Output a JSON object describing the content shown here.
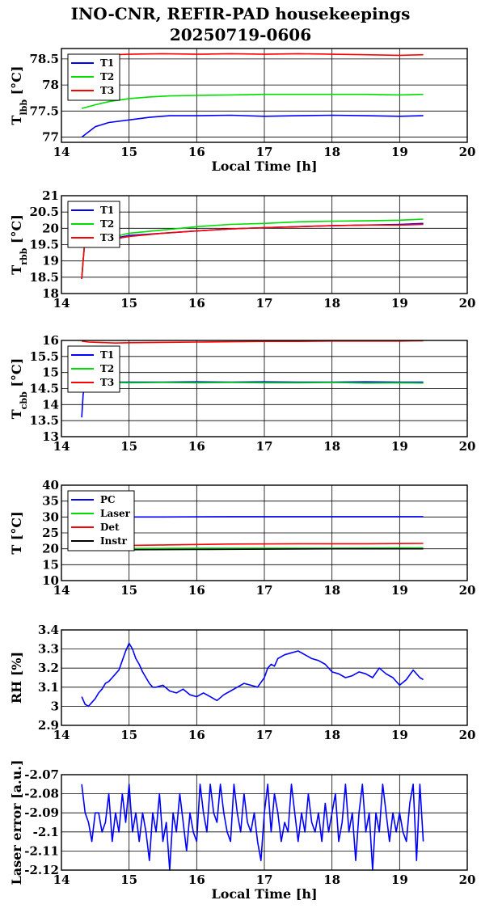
{
  "title": {
    "line1": "INO-CNR, REFIR-PAD housekeepings",
    "line2": "20250719-0606"
  },
  "colors": {
    "blue": "#0000ff",
    "green": "#00dd00",
    "red": "#ff0000",
    "black": "#000000"
  },
  "chart_data": [
    {
      "type": "line",
      "xlabel": "Local Time [h]",
      "ylabel": "T",
      "ylabel_sub": "lbb",
      "ylabel_unit": " [°C]",
      "xlim": [
        14,
        20
      ],
      "ylim": [
        76.9,
        78.7
      ],
      "xticks": [
        14,
        15,
        16,
        17,
        18,
        19,
        20
      ],
      "yticks": [
        77,
        77.5,
        78,
        78.5
      ],
      "ytick_labels": [
        "77",
        "77.5",
        "78",
        "78.5"
      ],
      "legend": "top-left",
      "series": [
        {
          "name": "T1",
          "color": "blue",
          "x": [
            14.3,
            14.4,
            14.5,
            14.7,
            15.0,
            15.3,
            15.6,
            16.0,
            16.5,
            17.0,
            17.5,
            18.0,
            18.5,
            19.0,
            19.35
          ],
          "y": [
            77.0,
            77.1,
            77.2,
            77.28,
            77.33,
            77.38,
            77.41,
            77.41,
            77.42,
            77.4,
            77.41,
            77.42,
            77.41,
            77.4,
            77.41
          ]
        },
        {
          "name": "T2",
          "color": "green",
          "x": [
            14.3,
            14.5,
            14.7,
            15.0,
            15.3,
            15.6,
            16.0,
            16.5,
            17.0,
            17.5,
            18.0,
            18.5,
            19.0,
            19.35
          ],
          "y": [
            77.55,
            77.62,
            77.68,
            77.74,
            77.77,
            77.79,
            77.8,
            77.81,
            77.82,
            77.82,
            77.82,
            77.82,
            77.81,
            77.82
          ]
        },
        {
          "name": "T3",
          "color": "red",
          "x": [
            14.75,
            15.0,
            15.5,
            16.0,
            16.5,
            17.0,
            17.5,
            18.0,
            18.5,
            19.0,
            19.35
          ],
          "y": [
            78.58,
            78.59,
            78.6,
            78.59,
            78.6,
            78.59,
            78.6,
            78.59,
            78.58,
            78.57,
            78.58
          ]
        }
      ]
    },
    {
      "type": "line",
      "xlabel": "",
      "ylabel": "T",
      "ylabel_sub": "rbb",
      "ylabel_unit": " [°C]",
      "xlim": [
        14,
        20
      ],
      "ylim": [
        18,
        21
      ],
      "xticks": [
        14,
        15,
        16,
        17,
        18,
        19,
        20
      ],
      "yticks": [
        18,
        18.5,
        19,
        19.5,
        20,
        20.5,
        21
      ],
      "ytick_labels": [
        "18",
        "18.5",
        "19",
        "19.5",
        "20",
        "20.5",
        "21"
      ],
      "legend": "top-left",
      "series": [
        {
          "name": "T1",
          "color": "blue",
          "x": [
            14.3,
            14.32,
            14.34,
            14.4,
            14.6,
            14.8,
            15.0,
            15.5,
            16.0,
            16.5,
            17.0,
            17.5,
            18.0,
            18.5,
            19.0,
            19.35
          ],
          "y": [
            18.45,
            19.0,
            19.45,
            19.55,
            19.6,
            19.7,
            19.78,
            19.85,
            19.92,
            19.98,
            20.02,
            20.05,
            20.08,
            20.1,
            20.12,
            20.15
          ]
        },
        {
          "name": "T2",
          "color": "green",
          "x": [
            14.3,
            14.32,
            14.34,
            14.4,
            14.6,
            14.8,
            15.0,
            15.5,
            16.0,
            16.5,
            17.0,
            17.5,
            18.0,
            18.5,
            19.0,
            19.35
          ],
          "y": [
            18.45,
            19.0,
            19.45,
            19.55,
            19.65,
            19.75,
            19.85,
            19.95,
            20.05,
            20.12,
            20.15,
            20.2,
            20.22,
            20.23,
            20.25,
            20.28
          ]
        },
        {
          "name": "T3",
          "color": "red",
          "x": [
            14.3,
            14.32,
            14.34,
            14.4,
            14.6,
            14.8,
            15.0,
            15.5,
            16.0,
            16.5,
            17.0,
            17.5,
            18.0,
            18.5,
            19.0,
            19.35
          ],
          "y": [
            18.45,
            19.0,
            19.45,
            19.55,
            19.6,
            19.68,
            19.75,
            19.85,
            19.92,
            19.98,
            20.02,
            20.05,
            20.08,
            20.1,
            20.1,
            20.12
          ]
        }
      ]
    },
    {
      "type": "line",
      "xlabel": "",
      "ylabel": "T",
      "ylabel_sub": "cbb",
      "ylabel_unit": " [°C]",
      "xlim": [
        14,
        20
      ],
      "ylim": [
        13,
        16
      ],
      "xticks": [
        14,
        15,
        16,
        17,
        18,
        19,
        20
      ],
      "yticks": [
        13,
        13.5,
        14,
        14.5,
        15,
        15.5,
        16
      ],
      "ytick_labels": [
        "13",
        "13.5",
        "14",
        "14.5",
        "15",
        "15.5",
        "16"
      ],
      "legend": "top-left",
      "series": [
        {
          "name": "T1",
          "color": "blue",
          "x": [
            14.3,
            14.32,
            14.34,
            14.36,
            14.5,
            15.0,
            15.5,
            16.0,
            16.5,
            17.0,
            17.5,
            18.0,
            18.5,
            19.0,
            19.35
          ],
          "y": [
            13.6,
            14.3,
            14.6,
            14.7,
            14.7,
            14.7,
            14.7,
            14.71,
            14.7,
            14.71,
            14.7,
            14.7,
            14.71,
            14.7,
            14.7
          ]
        },
        {
          "name": "T2",
          "color": "green",
          "x": [
            14.34,
            14.36,
            14.5,
            15.0,
            15.5,
            16.0,
            16.5,
            17.0,
            17.5,
            18.0,
            18.5,
            19.0,
            19.35
          ],
          "y": [
            14.55,
            14.68,
            14.7,
            14.68,
            14.69,
            14.68,
            14.69,
            14.68,
            14.68,
            14.69,
            14.67,
            14.68,
            14.67
          ]
        },
        {
          "name": "T3",
          "color": "red",
          "x": [
            14.3,
            14.4,
            14.8,
            15.0,
            15.5,
            16.0,
            16.5,
            17.0,
            17.5,
            18.0,
            18.5,
            19.0,
            19.35
          ],
          "y": [
            15.98,
            15.95,
            15.92,
            15.93,
            15.94,
            15.95,
            15.96,
            15.97,
            15.97,
            15.98,
            15.98,
            15.98,
            15.99
          ]
        }
      ]
    },
    {
      "type": "line",
      "xlabel": "",
      "ylabel": "T [°C]",
      "xlim": [
        14,
        20
      ],
      "ylim": [
        10,
        40
      ],
      "xticks": [
        14,
        15,
        16,
        17,
        18,
        19,
        20
      ],
      "yticks": [
        10,
        15,
        20,
        25,
        30,
        35,
        40
      ],
      "ytick_labels": [
        "10",
        "15",
        "20",
        "25",
        "30",
        "35",
        "40"
      ],
      "legend": "top-left",
      "series": [
        {
          "name": "PC",
          "color": "blue",
          "x": [
            14.8,
            15.5,
            16.5,
            17.5,
            18.5,
            19.35
          ],
          "y": [
            30.0,
            30.0,
            30.1,
            30.1,
            30.1,
            30.1
          ]
        },
        {
          "name": "Laser",
          "color": "green",
          "x": [
            14.3,
            15.0,
            16.0,
            17.0,
            18.0,
            19.0,
            19.35
          ],
          "y": [
            20.0,
            20.1,
            20.2,
            20.2,
            20.2,
            20.3,
            20.3
          ]
        },
        {
          "name": "Det",
          "color": "red",
          "x": [
            14.3,
            14.8,
            15.5,
            16.5,
            17.5,
            18.5,
            19.35
          ],
          "y": [
            20.8,
            21.0,
            21.2,
            21.5,
            21.6,
            21.6,
            21.7
          ]
        },
        {
          "name": "Instr",
          "color": "black",
          "x": [
            14.4,
            15.0,
            16.0,
            17.0,
            18.0,
            19.0,
            19.35
          ],
          "y": [
            19.6,
            19.7,
            19.8,
            19.9,
            20.0,
            20.0,
            20.0
          ]
        }
      ]
    },
    {
      "type": "line",
      "xlabel": "",
      "ylabel": "RH [%]",
      "xlim": [
        14,
        20
      ],
      "ylim": [
        2.9,
        3.4
      ],
      "xticks": [
        14,
        15,
        16,
        17,
        18,
        19,
        20
      ],
      "yticks": [
        2.9,
        3,
        3.1,
        3.2,
        3.3,
        3.4
      ],
      "ytick_labels": [
        "2.9",
        "3",
        "3.1",
        "3.2",
        "3.3",
        "3.4"
      ],
      "series": [
        {
          "color": "blue",
          "x": [
            14.3,
            14.35,
            14.4,
            14.45,
            14.5,
            14.55,
            14.6,
            14.65,
            14.7,
            14.75,
            14.8,
            14.85,
            14.9,
            14.95,
            15.0,
            15.05,
            15.1,
            15.15,
            15.2,
            15.25,
            15.3,
            15.35,
            15.4,
            15.5,
            15.6,
            15.7,
            15.8,
            15.9,
            16.0,
            16.1,
            16.2,
            16.3,
            16.4,
            16.5,
            16.6,
            16.7,
            16.8,
            16.9,
            17.0,
            17.05,
            17.1,
            17.15,
            17.2,
            17.3,
            17.4,
            17.5,
            17.6,
            17.7,
            17.8,
            17.9,
            18.0,
            18.1,
            18.2,
            18.3,
            18.4,
            18.5,
            18.6,
            18.7,
            18.8,
            18.9,
            19.0,
            19.1,
            19.2,
            19.3,
            19.35
          ],
          "y": [
            3.05,
            3.01,
            3.0,
            3.02,
            3.04,
            3.07,
            3.09,
            3.12,
            3.13,
            3.15,
            3.17,
            3.19,
            3.24,
            3.29,
            3.33,
            3.3,
            3.25,
            3.22,
            3.18,
            3.15,
            3.12,
            3.1,
            3.1,
            3.11,
            3.08,
            3.07,
            3.09,
            3.06,
            3.05,
            3.07,
            3.05,
            3.03,
            3.06,
            3.08,
            3.1,
            3.12,
            3.11,
            3.1,
            3.15,
            3.2,
            3.22,
            3.21,
            3.25,
            3.27,
            3.28,
            3.29,
            3.27,
            3.25,
            3.24,
            3.22,
            3.18,
            3.17,
            3.15,
            3.16,
            3.18,
            3.17,
            3.15,
            3.2,
            3.17,
            3.15,
            3.11,
            3.14,
            3.19,
            3.15,
            3.14
          ]
        }
      ]
    },
    {
      "type": "line",
      "xlabel": "Local Time [h]",
      "ylabel": "Laser error [a.u.]",
      "xlim": [
        14,
        20
      ],
      "ylim": [
        -2.12,
        -2.07
      ],
      "xticks": [
        14,
        15,
        16,
        17,
        18,
        19,
        20
      ],
      "yticks": [
        -2.12,
        -2.11,
        -2.1,
        -2.09,
        -2.08,
        -2.07
      ],
      "ytick_labels": [
        "-2.12",
        "-2.11",
        "-2.1",
        "-2.09",
        "-2.08",
        "-2.07"
      ],
      "series": [
        {
          "color": "blue",
          "x": [
            14.3,
            14.35,
            14.4,
            14.45,
            14.5,
            14.55,
            14.6,
            14.65,
            14.7,
            14.75,
            14.8,
            14.85,
            14.9,
            14.95,
            15.0,
            15.05,
            15.1,
            15.15,
            15.2,
            15.25,
            15.3,
            15.35,
            15.4,
            15.45,
            15.5,
            15.55,
            15.6,
            15.65,
            15.7,
            15.75,
            15.8,
            15.85,
            15.9,
            15.95,
            16.0,
            16.05,
            16.1,
            16.15,
            16.2,
            16.25,
            16.3,
            16.35,
            16.4,
            16.45,
            16.5,
            16.55,
            16.6,
            16.65,
            16.7,
            16.75,
            16.8,
            16.85,
            16.9,
            16.95,
            17.0,
            17.05,
            17.1,
            17.15,
            17.2,
            17.25,
            17.3,
            17.35,
            17.4,
            17.45,
            17.5,
            17.55,
            17.6,
            17.65,
            17.7,
            17.75,
            17.8,
            17.85,
            17.9,
            17.95,
            18.0,
            18.05,
            18.1,
            18.15,
            18.2,
            18.25,
            18.3,
            18.35,
            18.4,
            18.45,
            18.5,
            18.55,
            18.6,
            18.65,
            18.7,
            18.75,
            18.8,
            18.85,
            18.9,
            18.95,
            19.0,
            19.05,
            19.1,
            19.15,
            19.2,
            19.25,
            19.3,
            19.35
          ],
          "y": [
            -2.075,
            -2.09,
            -2.095,
            -2.105,
            -2.09,
            -2.09,
            -2.1,
            -2.095,
            -2.08,
            -2.105,
            -2.09,
            -2.1,
            -2.08,
            -2.095,
            -2.075,
            -2.1,
            -2.09,
            -2.105,
            -2.09,
            -2.1,
            -2.115,
            -2.09,
            -2.1,
            -2.08,
            -2.105,
            -2.095,
            -2.12,
            -2.09,
            -2.1,
            -2.08,
            -2.095,
            -2.11,
            -2.09,
            -2.1,
            -2.105,
            -2.075,
            -2.09,
            -2.1,
            -2.075,
            -2.09,
            -2.095,
            -2.075,
            -2.09,
            -2.1,
            -2.105,
            -2.075,
            -2.09,
            -2.1,
            -2.08,
            -2.095,
            -2.1,
            -2.09,
            -2.105,
            -2.115,
            -2.09,
            -2.075,
            -2.1,
            -2.08,
            -2.09,
            -2.105,
            -2.095,
            -2.1,
            -2.075,
            -2.09,
            -2.105,
            -2.09,
            -2.1,
            -2.08,
            -2.095,
            -2.1,
            -2.09,
            -2.105,
            -2.085,
            -2.1,
            -2.09,
            -2.08,
            -2.105,
            -2.095,
            -2.075,
            -2.1,
            -2.09,
            -2.115,
            -2.09,
            -2.075,
            -2.1,
            -2.09,
            -2.12,
            -2.09,
            -2.1,
            -2.075,
            -2.09,
            -2.105,
            -2.09,
            -2.1,
            -2.09,
            -2.1,
            -2.105,
            -2.085,
            -2.075,
            -2.115,
            -2.075,
            -2.105
          ]
        }
      ]
    }
  ]
}
